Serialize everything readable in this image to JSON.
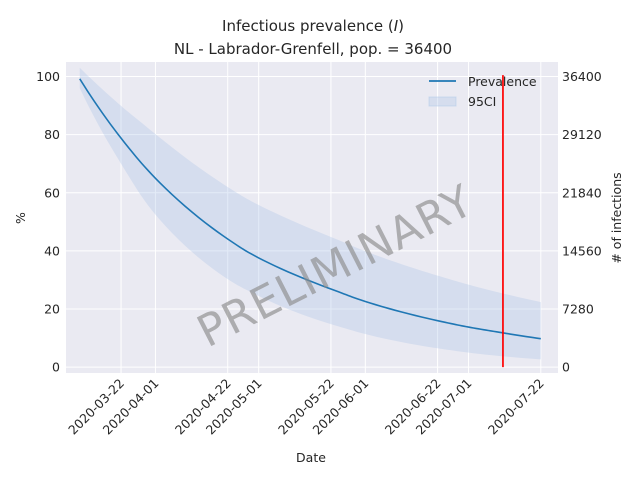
{
  "chart_data": {
    "type": "line",
    "title_line1_prefix": "Infectious prevalence (",
    "title_line1_var": "I",
    "title_line1_suffix": ")",
    "title_line2": "NL - Labrador-Grenfell, pop. = 36400",
    "xlabel": "Date",
    "ylabel": "%",
    "ylabel_right": "# of infections",
    "ylim": [
      -2,
      105
    ],
    "y_ticks": [
      0,
      20,
      40,
      60,
      80,
      100
    ],
    "y_tick_labels": [
      "0",
      "20",
      "40",
      "60",
      "80",
      "100"
    ],
    "y2_ticks": [
      0,
      20,
      40,
      60,
      80,
      100
    ],
    "y2_tick_labels": [
      "0",
      "7280",
      "14560",
      "21840",
      "29120",
      "36400"
    ],
    "xlim": [
      "2020-03-06",
      "2020-07-27"
    ],
    "x_ticks": [
      "2020-03-22",
      "2020-04-01",
      "2020-04-22",
      "2020-05-01",
      "2020-05-22",
      "2020-06-01",
      "2020-06-22",
      "2020-07-01",
      "2020-07-22"
    ],
    "x_tick_labels": [
      "2020-03-22",
      "2020-04-01",
      "2020-04-22",
      "2020-05-01",
      "2020-05-22",
      "2020-06-01",
      "2020-06-22",
      "2020-07-01",
      "2020-07-22"
    ],
    "series": [
      {
        "name": "Prevalence",
        "color": "#1f77b4",
        "x": [
          "2020-03-10",
          "2020-03-22",
          "2020-04-01",
          "2020-04-22",
          "2020-05-01",
          "2020-05-22",
          "2020-06-01",
          "2020-06-22",
          "2020-07-01",
          "2020-07-10",
          "2020-07-22"
        ],
        "values": [
          99.2,
          78.8,
          65.0,
          44.1,
          37.6,
          26.9,
          22.6,
          16.0,
          13.8,
          12.0,
          9.8
        ]
      }
    ],
    "band": {
      "name": "95CI",
      "color": "#aec7e8",
      "x": [
        "2020-03-10",
        "2020-03-22",
        "2020-04-01",
        "2020-04-22",
        "2020-05-01",
        "2020-05-22",
        "2020-06-01",
        "2020-06-22",
        "2020-07-01",
        "2020-07-22"
      ],
      "upper": [
        103,
        89.9,
        80.2,
        62.0,
        55.8,
        44.8,
        39.9,
        31.5,
        28.4,
        22.4
      ],
      "lower": [
        96,
        70.0,
        52.5,
        30.3,
        24.5,
        14.8,
        11.4,
        6.5,
        5.0,
        2.7
      ]
    },
    "vline": {
      "x": "2020-07-11",
      "color": "#ff0000"
    },
    "legend_position": "top-right",
    "grid": true,
    "watermark": "PRELIMINARY",
    "background": "#eaeaf2"
  }
}
